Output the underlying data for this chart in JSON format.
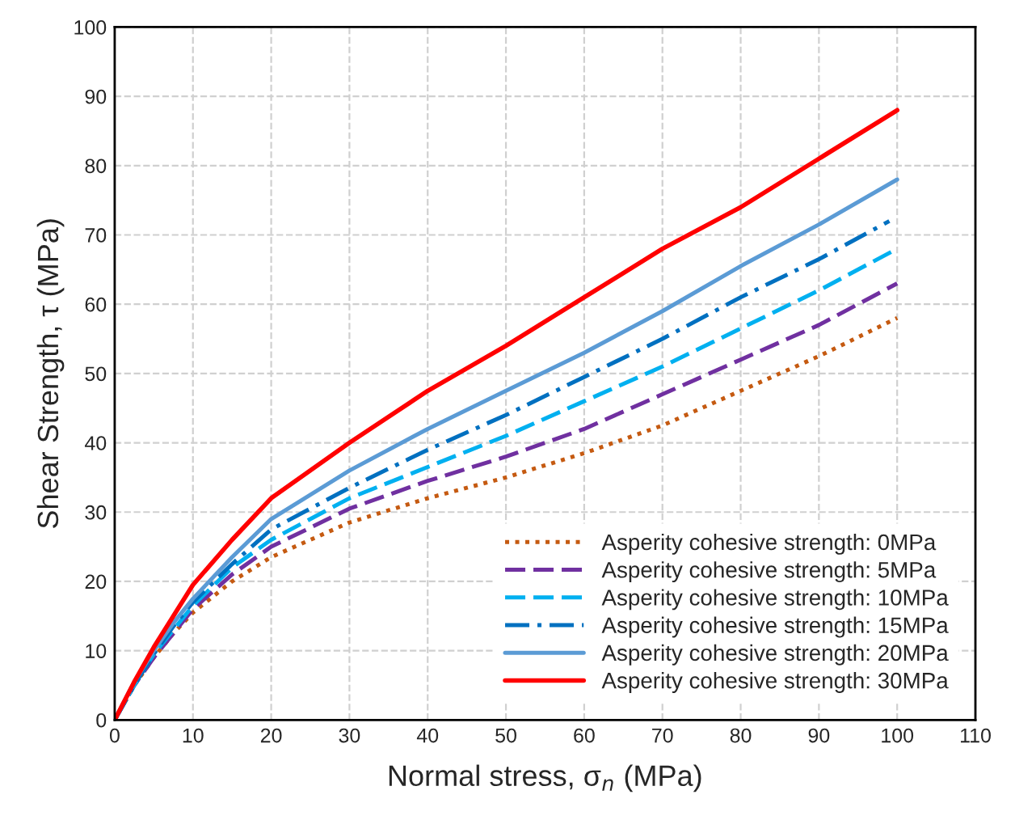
{
  "chart_data": {
    "type": "line",
    "xlabel": "Normal stress, σ$_{n}$ (MPa)",
    "ylabel": "Shear Strength, τ (MPa)",
    "xlim": [
      0,
      110
    ],
    "ylim": [
      0,
      100
    ],
    "xticks": [
      0,
      10,
      20,
      30,
      40,
      50,
      60,
      70,
      80,
      90,
      100,
      110
    ],
    "yticks": [
      0,
      10,
      20,
      30,
      40,
      50,
      60,
      70,
      80,
      90,
      100
    ],
    "grid": true,
    "legend": "bottom right",
    "marker": "none",
    "series": [
      {
        "name": "Asperity cohesive strength: 0MPa",
        "color": "#c55a11",
        "line_style": "dotted",
        "x": [
          0,
          2.5,
          5,
          7.5,
          10,
          15,
          20,
          30,
          40,
          50,
          60,
          70,
          80,
          90,
          100
        ],
        "values": [
          0,
          5,
          9,
          12.5,
          15.5,
          20,
          23.5,
          28.5,
          32,
          35,
          38.5,
          42.5,
          47.5,
          52.5,
          58
        ]
      },
      {
        "name": "Asperity cohesive strength: 5MPa",
        "color": "#7030a0",
        "line_style": "dashed",
        "x": [
          0,
          2.5,
          5,
          7.5,
          10,
          15,
          20,
          30,
          40,
          50,
          60,
          70,
          80,
          90,
          100
        ],
        "values": [
          0,
          5,
          9,
          12.5,
          16,
          21,
          25,
          30.5,
          34.5,
          38,
          42,
          47,
          52,
          57,
          63
        ]
      },
      {
        "name": "Asperity cohesive strength: 10MPa",
        "color": "#00b0f0",
        "line_style": "dashed",
        "x": [
          0,
          2.5,
          5,
          7.5,
          10,
          15,
          20,
          30,
          40,
          50,
          60,
          70,
          80,
          90,
          100
        ],
        "values": [
          0,
          5,
          9.5,
          13,
          16.5,
          22,
          26,
          32,
          36.5,
          41,
          46,
          51,
          56.5,
          62,
          68
        ]
      },
      {
        "name": "Asperity cohesive strength: 15MPa",
        "color": "#0070c0",
        "line_style": "dashdot",
        "x": [
          0,
          2.5,
          5,
          7.5,
          10,
          15,
          20,
          30,
          40,
          50,
          60,
          70,
          80,
          90,
          99
        ],
        "values": [
          0,
          5,
          9.5,
          13.5,
          17,
          22.5,
          27.5,
          33.5,
          39,
          44,
          49.5,
          55,
          61,
          66.5,
          72
        ]
      },
      {
        "name": "Asperity cohesive strength: 20MPa",
        "color": "#5b9bd5",
        "line_style": "solid",
        "x": [
          0,
          2.5,
          5,
          7.5,
          10,
          15,
          20,
          25,
          30,
          40,
          50,
          60,
          70,
          80,
          90,
          100
        ],
        "values": [
          0,
          5.5,
          10,
          14,
          17.5,
          23.5,
          29,
          32.5,
          36,
          42,
          47.5,
          53,
          59,
          65.5,
          71.5,
          78
        ]
      },
      {
        "name": "Asperity cohesive strength: 30MPa",
        "color": "#ff0000",
        "line_style": "solid",
        "x": [
          0,
          2.5,
          5,
          7.5,
          10,
          15,
          20,
          25,
          30,
          40,
          50,
          60,
          70,
          80,
          90,
          100
        ],
        "values": [
          0,
          5.5,
          10.5,
          15,
          19.5,
          26,
          32,
          36,
          40,
          47.5,
          54,
          61,
          68,
          74,
          81,
          88
        ]
      }
    ]
  }
}
